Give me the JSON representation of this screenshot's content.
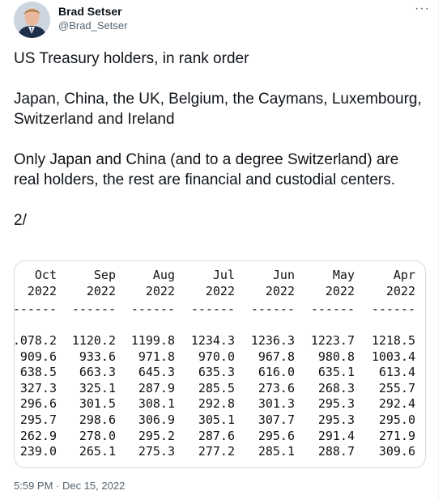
{
  "tweet": {
    "author_name": "Brad Setser",
    "author_handle": "@Brad_Setser",
    "more_icon": "more-horizontal-icon",
    "text": "US Treasury holders, in rank order\n\nJapan, China, the UK, Belgium, the Caymans, Luxembourg, Switzerland and Ireland\n\nOnly Japan and China (and to a degree Switzerland) are real holders, the rest are financial and custodial centers.\n\n2/",
    "timestamp": "5:59 PM · Dec 15, 2022"
  },
  "media_table": {
    "columns": [
      {
        "month": "Oct",
        "year": "2022"
      },
      {
        "month": "Sep",
        "year": "2022"
      },
      {
        "month": "Aug",
        "year": "2022"
      },
      {
        "month": "Jul",
        "year": "2022"
      },
      {
        "month": "Jun",
        "year": "2022"
      },
      {
        "month": "May",
        "year": "2022"
      },
      {
        "month": "Apr",
        "year": "2022"
      }
    ],
    "separator": "------",
    "rows": [
      [
        ".078.2",
        "1120.2",
        "1199.8",
        "1234.3",
        "1236.3",
        "1223.7",
        "1218.5"
      ],
      [
        "909.6",
        "933.6",
        "971.8",
        "970.0",
        "967.8",
        "980.8",
        "1003.4"
      ],
      [
        "638.5",
        "663.3",
        "645.3",
        "635.3",
        "616.0",
        "635.1",
        "613.4"
      ],
      [
        "327.3",
        "325.1",
        "287.9",
        "285.5",
        "273.6",
        "268.3",
        "255.7"
      ],
      [
        "296.6",
        "301.5",
        "308.1",
        "292.8",
        "301.3",
        "295.3",
        "292.4"
      ],
      [
        "295.7",
        "298.6",
        "306.9",
        "305.1",
        "307.7",
        "295.3",
        "295.0"
      ],
      [
        "262.9",
        "278.0",
        "295.2",
        "287.6",
        "295.6",
        "291.4",
        "271.9"
      ],
      [
        "239.0",
        "265.1",
        "275.3",
        "277.2",
        "285.1",
        "288.7",
        "309.6"
      ]
    ]
  }
}
